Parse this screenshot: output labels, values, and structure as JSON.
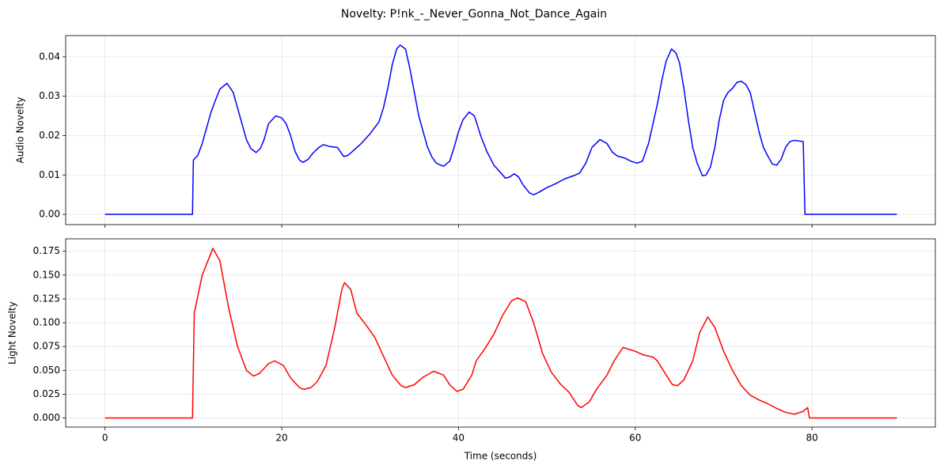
{
  "title": "Novelty: P!nk_-_Never_Gonna_Not_Dance_Again",
  "chart_data": [
    {
      "type": "line",
      "ylabel": "Audio Novelty",
      "grid": true,
      "xlim": [
        -4.45,
        93.95
      ],
      "xticks": [
        0,
        20,
        40,
        60,
        80
      ],
      "ylim": [
        -0.0026,
        0.0454
      ],
      "yticks": [
        {
          "value": 0,
          "label": "0.00"
        },
        {
          "value": 0.01,
          "label": "0.01"
        },
        {
          "value": 0.02,
          "label": "0.02"
        },
        {
          "value": 0.03,
          "label": "0.03"
        },
        {
          "value": 0.04,
          "label": "0.04"
        }
      ],
      "x": [
        0,
        9.9,
        10.0,
        10.5,
        11,
        11.5,
        12,
        12.5,
        13,
        13.8,
        14.5,
        15,
        15.5,
        16,
        16.5,
        17.1,
        17.6,
        18,
        18.5,
        19.3,
        20,
        20.5,
        21,
        21.5,
        22,
        22.4,
        23,
        23.5,
        24.2,
        24.7,
        25.5,
        26.3,
        27,
        27.5,
        28,
        29,
        30,
        31,
        31.5,
        32,
        32.5,
        33,
        33.4,
        34,
        34.5,
        35,
        35.5,
        36,
        36.5,
        37,
        37.5,
        38.3,
        39,
        39.5,
        40,
        40.5,
        41.2,
        41.8,
        42.5,
        43.2,
        44,
        44.8,
        45.3,
        45.8,
        46.3,
        46.8,
        47.3,
        48,
        48.5,
        49,
        50,
        51,
        52,
        53,
        53.7,
        54.4,
        55.1,
        56,
        56.8,
        57.4,
        58,
        58.8,
        59.5,
        60.2,
        60.8,
        61.5,
        62,
        62.5,
        63,
        63.5,
        64.1,
        64.6,
        65,
        65.5,
        66,
        66.5,
        67,
        67.6,
        68,
        68.5,
        69,
        69.5,
        70,
        70.5,
        71,
        71.5,
        72,
        72.5,
        73,
        73.5,
        74,
        74.5,
        75,
        75.5,
        76,
        76.5,
        77,
        77.5,
        78,
        79,
        79.2,
        89.6
      ],
      "series": [
        {
          "color": "#0000ff",
          "values": [
            0,
            0,
            0.0138,
            0.015,
            0.018,
            0.022,
            0.026,
            0.029,
            0.0318,
            0.0333,
            0.031,
            0.027,
            0.023,
            0.019,
            0.0167,
            0.0157,
            0.0168,
            0.019,
            0.023,
            0.025,
            0.0245,
            0.023,
            0.02,
            0.016,
            0.0138,
            0.0132,
            0.014,
            0.0155,
            0.017,
            0.0177,
            0.0172,
            0.017,
            0.0147,
            0.015,
            0.016,
            0.018,
            0.0205,
            0.0235,
            0.027,
            0.032,
            0.038,
            0.042,
            0.043,
            0.042,
            0.037,
            0.031,
            0.025,
            0.021,
            0.017,
            0.0145,
            0.013,
            0.0122,
            0.0135,
            0.017,
            0.021,
            0.024,
            0.026,
            0.025,
            0.02,
            0.016,
            0.0125,
            0.0105,
            0.0092,
            0.0095,
            0.0103,
            0.0095,
            0.0075,
            0.0055,
            0.005,
            0.0055,
            0.0068,
            0.0078,
            0.009,
            0.0098,
            0.0105,
            0.013,
            0.017,
            0.019,
            0.018,
            0.0158,
            0.0148,
            0.0143,
            0.0135,
            0.013,
            0.0135,
            0.018,
            0.023,
            0.028,
            0.034,
            0.039,
            0.042,
            0.041,
            0.0385,
            0.032,
            0.024,
            0.017,
            0.013,
            0.0098,
            0.01,
            0.012,
            0.017,
            0.024,
            0.029,
            0.031,
            0.032,
            0.0335,
            0.0338,
            0.033,
            0.031,
            0.026,
            0.021,
            0.017,
            0.0148,
            0.0128,
            0.0125,
            0.014,
            0.017,
            0.0185,
            0.0188,
            0.0185,
            0,
            0
          ]
        }
      ]
    },
    {
      "type": "line",
      "ylabel": "Light Novelty",
      "xlabel": "Time (seconds)",
      "grid": true,
      "xlim": [
        -4.45,
        93.95
      ],
      "xticks": [
        0,
        20,
        40,
        60,
        80
      ],
      "ylim": [
        -0.0095,
        0.188
      ],
      "yticks": [
        {
          "value": 0,
          "label": "0.000"
        },
        {
          "value": 0.025,
          "label": "0.025"
        },
        {
          "value": 0.05,
          "label": "0.050"
        },
        {
          "value": 0.075,
          "label": "0.075"
        },
        {
          "value": 0.1,
          "label": "0.100"
        },
        {
          "value": 0.125,
          "label": "0.125"
        },
        {
          "value": 0.15,
          "label": "0.150"
        },
        {
          "value": 0.175,
          "label": "0.175"
        }
      ],
      "x": [
        0,
        9.9,
        10.1,
        11,
        12.2,
        13,
        14,
        15,
        16,
        16.8,
        17.5,
        18.5,
        19.2,
        20.2,
        21,
        22,
        22.5,
        23.3,
        24,
        25,
        26,
        26.8,
        27.1,
        27.8,
        28.5,
        29.5,
        30.5,
        31.5,
        32.5,
        33.5,
        34,
        35,
        36,
        37.2,
        38.3,
        39,
        39.8,
        40.5,
        41.5,
        42,
        43,
        44,
        45,
        46,
        46.7,
        47.6,
        48.5,
        49.5,
        50.5,
        51.5,
        52.5,
        53.5,
        53.9,
        54.8,
        55.6,
        56.8,
        57.6,
        58.6,
        60,
        61,
        62,
        62.5,
        63.5,
        64.2,
        64.8,
        65.5,
        66.5,
        67.3,
        68.2,
        69,
        70,
        71,
        72,
        73,
        74,
        75,
        76,
        77,
        78,
        79,
        79.5,
        79.7,
        89.6
      ],
      "series": [
        {
          "color": "#ff0000",
          "values": [
            0,
            0,
            0.11,
            0.15,
            0.178,
            0.165,
            0.115,
            0.075,
            0.05,
            0.044,
            0.047,
            0.057,
            0.06,
            0.055,
            0.042,
            0.032,
            0.03,
            0.032,
            0.038,
            0.055,
            0.095,
            0.135,
            0.142,
            0.135,
            0.11,
            0.098,
            0.085,
            0.065,
            0.045,
            0.034,
            0.032,
            0.035,
            0.043,
            0.049,
            0.045,
            0.035,
            0.028,
            0.03,
            0.045,
            0.06,
            0.073,
            0.088,
            0.108,
            0.123,
            0.126,
            0.122,
            0.1,
            0.068,
            0.048,
            0.036,
            0.027,
            0.013,
            0.011,
            0.017,
            0.03,
            0.045,
            0.06,
            0.074,
            0.07,
            0.066,
            0.064,
            0.06,
            0.045,
            0.035,
            0.034,
            0.04,
            0.06,
            0.09,
            0.106,
            0.095,
            0.07,
            0.05,
            0.034,
            0.024,
            0.019,
            0.015,
            0.01,
            0.006,
            0.004,
            0.007,
            0.011,
            0,
            0
          ]
        }
      ]
    }
  ]
}
